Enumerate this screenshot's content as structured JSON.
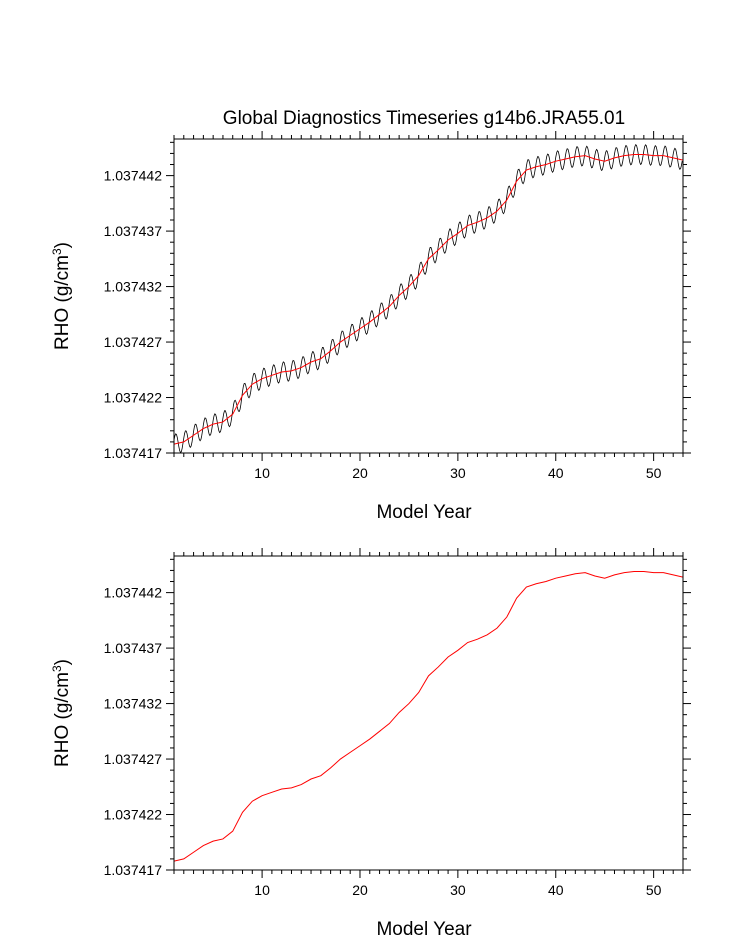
{
  "title": "Global Diagnostics Timeseries g14b6.JRA55.01",
  "colors": {
    "raw_series": "#000000",
    "smoothed_series": "#ff0000"
  },
  "chart_data": [
    {
      "type": "line",
      "title": "Global Diagnostics Timeseries g14b6.JRA55.01",
      "xlabel": "Model Year",
      "ylabel": "RHO (g/cm",
      "ylabel_sup": "3",
      "ylabel_end": ")",
      "xlim": [
        1,
        53
      ],
      "ylim": [
        1.037417,
        1.0374453
      ],
      "xticks": [
        10,
        20,
        30,
        40,
        50
      ],
      "xtick_labels": [
        "10",
        "20",
        "30",
        "40",
        "50"
      ],
      "yticks": [
        1.037417,
        1.037422,
        1.037427,
        1.037432,
        1.037437,
        1.037442
      ],
      "ytick_labels": [
        "1.037417",
        "1.037422",
        "1.037427",
        "1.037432",
        "1.037437",
        "1.037442"
      ],
      "series": [
        {
          "name": "monthly",
          "color": "#000000",
          "kind": "seasonal",
          "seasonal_amplitude": 9e-07,
          "base_series": "annual_mean"
        },
        {
          "name": "annual_mean",
          "color": "#ff0000",
          "x": [
            1,
            2,
            3,
            4,
            5,
            6,
            7,
            8,
            9,
            10,
            11,
            12,
            13,
            14,
            15,
            16,
            17,
            18,
            19,
            20,
            21,
            22,
            23,
            24,
            25,
            26,
            27,
            28,
            29,
            30,
            31,
            32,
            33,
            34,
            35,
            36,
            37,
            38,
            39,
            40,
            41,
            42,
            43,
            44,
            45,
            46,
            47,
            48,
            49,
            50,
            51,
            52,
            53
          ],
          "values": [
            1.0374178,
            1.037418,
            1.0374186,
            1.0374192,
            1.0374196,
            1.0374198,
            1.0374205,
            1.0374222,
            1.0374232,
            1.0374237,
            1.037424,
            1.0374243,
            1.0374244,
            1.0374247,
            1.0374252,
            1.0374255,
            1.0374262,
            1.037427,
            1.0374276,
            1.0374282,
            1.0374288,
            1.0374295,
            1.0374302,
            1.0374312,
            1.037432,
            1.037433,
            1.0374345,
            1.0374353,
            1.0374362,
            1.0374368,
            1.0374375,
            1.0374378,
            1.0374382,
            1.0374388,
            1.0374398,
            1.0374415,
            1.0374425,
            1.0374428,
            1.037443,
            1.0374433,
            1.0374435,
            1.0374437,
            1.0374438,
            1.0374435,
            1.0374433,
            1.0374436,
            1.0374438,
            1.0374439,
            1.0374439,
            1.0374438,
            1.0374438,
            1.0374436,
            1.0374434
          ]
        }
      ]
    },
    {
      "type": "line",
      "title": "",
      "xlabel": "Model Year",
      "ylabel": "RHO (g/cm",
      "ylabel_sup": "3",
      "ylabel_end": ")",
      "xlim": [
        1,
        53
      ],
      "ylim": [
        1.037417,
        1.0374453
      ],
      "xticks": [
        10,
        20,
        30,
        40,
        50
      ],
      "xtick_labels": [
        "10",
        "20",
        "30",
        "40",
        "50"
      ],
      "yticks": [
        1.037417,
        1.037422,
        1.037427,
        1.037432,
        1.037437,
        1.037442
      ],
      "ytick_labels": [
        "1.037417",
        "1.037422",
        "1.037427",
        "1.037432",
        "1.037437",
        "1.037442"
      ],
      "series": [
        {
          "name": "annual_mean",
          "color": "#ff0000",
          "x": [
            1,
            2,
            3,
            4,
            5,
            6,
            7,
            8,
            9,
            10,
            11,
            12,
            13,
            14,
            15,
            16,
            17,
            18,
            19,
            20,
            21,
            22,
            23,
            24,
            25,
            26,
            27,
            28,
            29,
            30,
            31,
            32,
            33,
            34,
            35,
            36,
            37,
            38,
            39,
            40,
            41,
            42,
            43,
            44,
            45,
            46,
            47,
            48,
            49,
            50,
            51,
            52,
            53
          ],
          "values": [
            1.0374178,
            1.037418,
            1.0374186,
            1.0374192,
            1.0374196,
            1.0374198,
            1.0374205,
            1.0374222,
            1.0374232,
            1.0374237,
            1.037424,
            1.0374243,
            1.0374244,
            1.0374247,
            1.0374252,
            1.0374255,
            1.0374262,
            1.037427,
            1.0374276,
            1.0374282,
            1.0374288,
            1.0374295,
            1.0374302,
            1.0374312,
            1.037432,
            1.037433,
            1.0374345,
            1.0374353,
            1.0374362,
            1.0374368,
            1.0374375,
            1.0374378,
            1.0374382,
            1.0374388,
            1.0374398,
            1.0374415,
            1.0374425,
            1.0374428,
            1.037443,
            1.0374433,
            1.0374435,
            1.0374437,
            1.0374438,
            1.0374435,
            1.0374433,
            1.0374436,
            1.0374438,
            1.0374439,
            1.0374439,
            1.0374438,
            1.0374438,
            1.0374436,
            1.0374434
          ]
        }
      ]
    }
  ]
}
